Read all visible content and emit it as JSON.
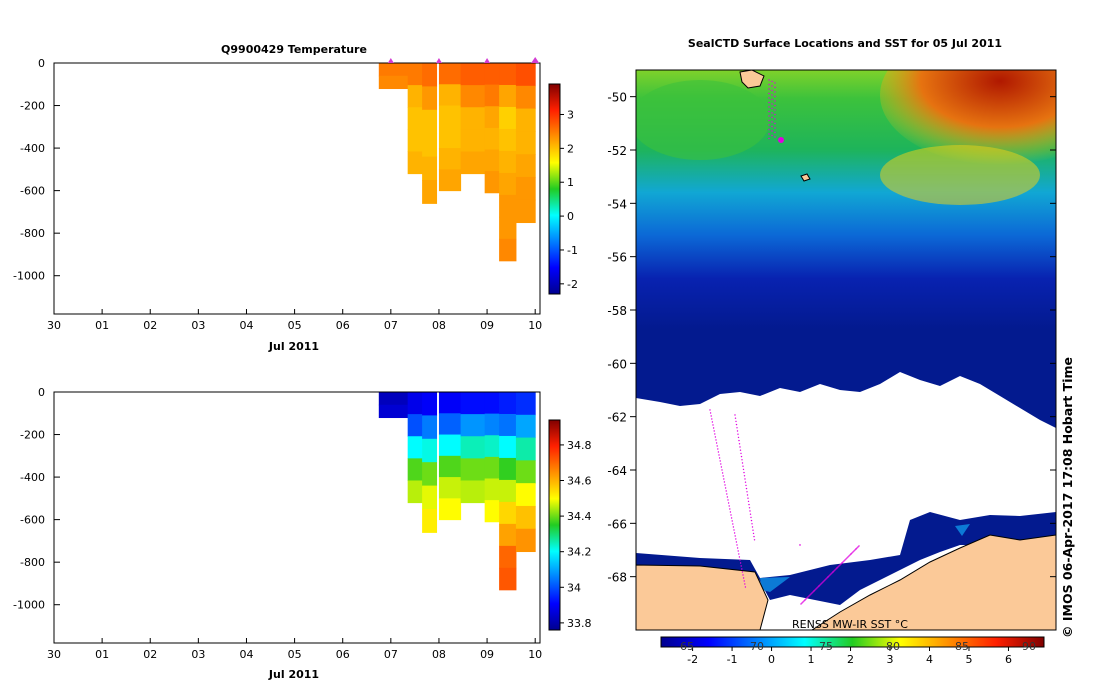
{
  "chart_data": [
    {
      "type": "heatmap",
      "title": "Q9900429  Temperature",
      "xlabel": "Jul 2011",
      "x_ticks": [
        "30",
        "01",
        "02",
        "03",
        "04",
        "05",
        "06",
        "07",
        "08",
        "09",
        "10"
      ],
      "y_ticks": [
        "0",
        "-200",
        "-400",
        "-600",
        "-800",
        "-1000"
      ],
      "ylim": [
        -1180,
        0
      ],
      "colorbar": {
        "range": [
          -2.3,
          3.9
        ],
        "ticks": [
          "-2",
          "-1",
          "0",
          "1",
          "2",
          "3"
        ]
      },
      "profile_markers": [
        "07",
        "08",
        "09",
        "10"
      ],
      "profiles": [
        {
          "day": 6.75,
          "width": 0.65,
          "max_depth": 120,
          "values": [
            2.5,
            2.4
          ]
        },
        {
          "day": 7.35,
          "width": 0.3,
          "max_depth": 520,
          "values": [
            2.5,
            2.1,
            2.0,
            2.0,
            2.1
          ]
        },
        {
          "day": 7.65,
          "width": 0.3,
          "max_depth": 660,
          "values": [
            2.6,
            2.3,
            2.0,
            2.0,
            2.1,
            2.2
          ]
        },
        {
          "day": 8.0,
          "width": 0.45,
          "max_depth": 600,
          "values": [
            2.6,
            2.1,
            2.0,
            2.0,
            2.1,
            2.2
          ]
        },
        {
          "day": 8.45,
          "width": 0.5,
          "max_depth": 520,
          "values": [
            2.7,
            2.4,
            2.1,
            2.1,
            2.2
          ]
        },
        {
          "day": 8.95,
          "width": 0.3,
          "max_depth": 610,
          "values": [
            2.7,
            2.5,
            2.2,
            2.1,
            2.2,
            2.3
          ]
        },
        {
          "day": 9.25,
          "width": 0.35,
          "max_depth": 930,
          "values": [
            2.7,
            2.2,
            1.9,
            2.0,
            2.1,
            2.2,
            2.3,
            2.3,
            2.4
          ]
        },
        {
          "day": 9.6,
          "width": 0.4,
          "max_depth": 750,
          "values": [
            2.8,
            2.4,
            2.1,
            2.1,
            2.2,
            2.3,
            2.3
          ]
        }
      ]
    },
    {
      "type": "heatmap",
      "xlabel": "Jul 2011",
      "x_ticks": [
        "30",
        "01",
        "02",
        "03",
        "04",
        "05",
        "06",
        "07",
        "08",
        "09",
        "10"
      ],
      "y_ticks": [
        "0",
        "-200",
        "-400",
        "-600",
        "-800",
        "-1000"
      ],
      "ylim": [
        -1180,
        0
      ],
      "colorbar": {
        "range": [
          33.76,
          34.94
        ],
        "ticks": [
          "33.8",
          "34",
          "34.2",
          "34.4",
          "34.6",
          "34.8"
        ]
      },
      "profiles": [
        {
          "day": 6.75,
          "width": 0.65,
          "max_depth": 120,
          "values": [
            33.82,
            33.85
          ]
        },
        {
          "day": 7.35,
          "width": 0.3,
          "max_depth": 520,
          "values": [
            33.88,
            34.0,
            34.2,
            34.38,
            34.45
          ]
        },
        {
          "day": 7.65,
          "width": 0.3,
          "max_depth": 660,
          "values": [
            33.9,
            34.05,
            34.22,
            34.4,
            34.48,
            34.52
          ]
        },
        {
          "day": 8.0,
          "width": 0.45,
          "max_depth": 600,
          "values": [
            33.9,
            34.02,
            34.2,
            34.38,
            34.46,
            34.5
          ]
        },
        {
          "day": 8.45,
          "width": 0.5,
          "max_depth": 520,
          "values": [
            33.92,
            34.08,
            34.25,
            34.4,
            34.45
          ]
        },
        {
          "day": 8.95,
          "width": 0.3,
          "max_depth": 610,
          "values": [
            33.92,
            34.06,
            34.24,
            34.4,
            34.46,
            34.5
          ]
        },
        {
          "day": 9.25,
          "width": 0.35,
          "max_depth": 930,
          "values": [
            33.94,
            34.04,
            34.2,
            34.36,
            34.46,
            34.55,
            34.62,
            34.7,
            34.72
          ]
        },
        {
          "day": 9.6,
          "width": 0.4,
          "max_depth": 750,
          "values": [
            33.96,
            34.1,
            34.26,
            34.4,
            34.5,
            34.58,
            34.64
          ]
        }
      ]
    },
    {
      "type": "heatmap",
      "title": "SealCTD Surface Locations and SST for 05 Jul 2011",
      "y_ticks": [
        "-50",
        "-52",
        "-54",
        "-56",
        "-58",
        "-60",
        "-62",
        "-64",
        "-66",
        "-68"
      ],
      "ylim": [
        -70,
        -49
      ],
      "colorbar_label": "RENSS MW-IR SST °C",
      "colorbar": {
        "range": [
          -2.8,
          6.9
        ],
        "ticks": [
          "-2",
          "-1",
          "0",
          "1",
          "2",
          "3",
          "4",
          "5",
          "6"
        ]
      },
      "longitude_labels": [
        "65",
        "70",
        "75",
        "80",
        "85",
        "90"
      ]
    }
  ],
  "credit": "© IMOS 06-Apr-2017 17:08 Hobart Time"
}
